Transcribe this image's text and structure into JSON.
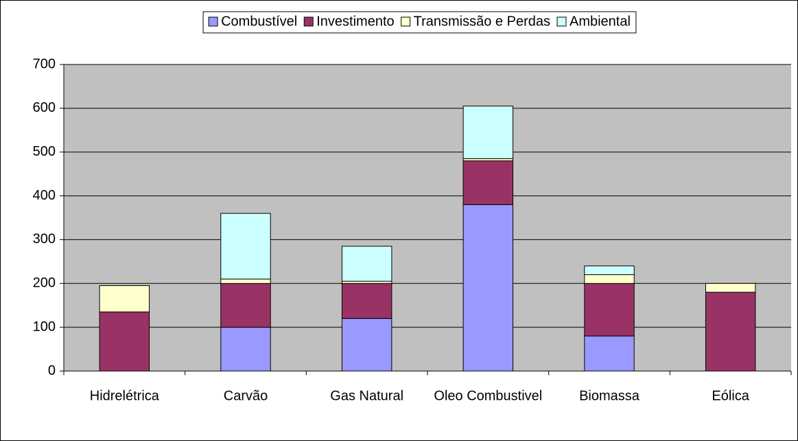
{
  "chart_data": {
    "type": "stacked_bar",
    "categories": [
      "Hidrelétrica",
      "Carvão",
      "Gas Natural",
      "Oleo Combustivel",
      "Biomassa",
      "Eólica"
    ],
    "series": [
      {
        "name": "Combustível",
        "color": "#9999ff",
        "values": [
          0,
          100,
          120,
          380,
          80,
          0
        ]
      },
      {
        "name": "Investimento",
        "color": "#993366",
        "values": [
          135,
          100,
          80,
          100,
          120,
          180
        ]
      },
      {
        "name": "Transmissão e Perdas",
        "color": "#ffffcc",
        "values": [
          60,
          10,
          5,
          5,
          20,
          20
        ]
      },
      {
        "name": "Ambiental",
        "color": "#ccffff",
        "values": [
          0,
          150,
          80,
          120,
          20,
          0
        ]
      }
    ],
    "ylim": [
      0,
      700
    ],
    "yticks": [
      0,
      100,
      200,
      300,
      400,
      500,
      600,
      700
    ],
    "grid": true,
    "legend": "top",
    "plot_background": "#c0c0c0"
  }
}
